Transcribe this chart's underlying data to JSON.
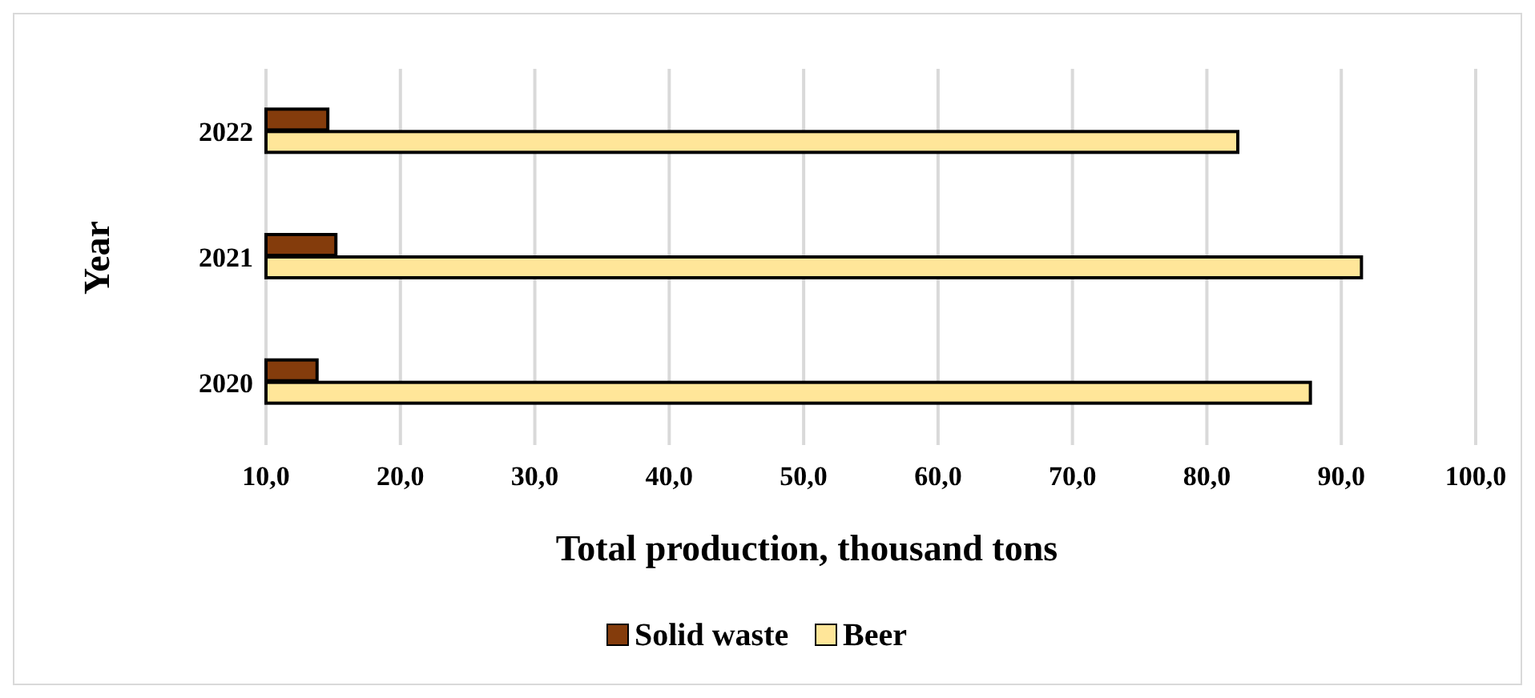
{
  "chart_data": {
    "type": "bar",
    "orientation": "horizontal",
    "xlabel": "Total production, thousand tons",
    "ylabel": "Year",
    "categories": [
      "2022",
      "2021",
      "2020"
    ],
    "series": [
      {
        "name": "Solid waste",
        "color": "#843c0c",
        "values": [
          14.6,
          15.2,
          13.8
        ]
      },
      {
        "name": "Beer",
        "color": "#ffe699",
        "values": [
          82.3,
          91.5,
          87.7
        ]
      }
    ],
    "xlim": [
      10,
      100
    ],
    "xticks": [
      {
        "value": 10,
        "label": "10,0"
      },
      {
        "value": 20,
        "label": "20,0"
      },
      {
        "value": 30,
        "label": "30,0"
      },
      {
        "value": 40,
        "label": "40,0"
      },
      {
        "value": 50,
        "label": "50,0"
      },
      {
        "value": 60,
        "label": "60,0"
      },
      {
        "value": 70,
        "label": "70,0"
      },
      {
        "value": 80,
        "label": "80,0"
      },
      {
        "value": 90,
        "label": "90,0"
      },
      {
        "value": 100,
        "label": "100,0"
      }
    ],
    "grid": "x",
    "legend": "bottom"
  }
}
